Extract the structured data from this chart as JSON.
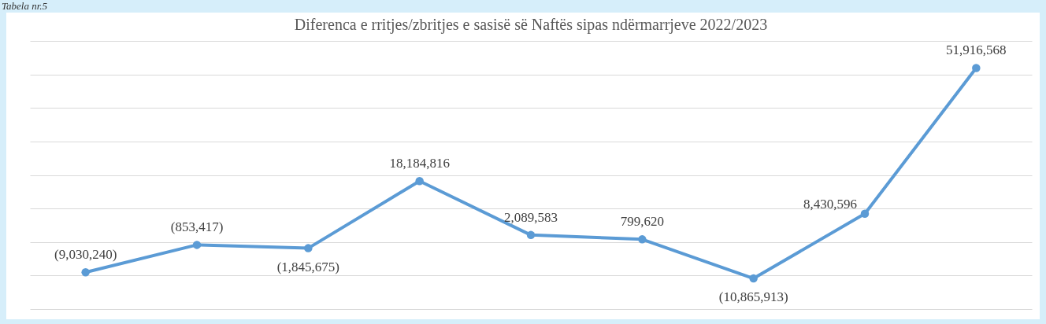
{
  "chart_data": {
    "type": "line",
    "title": "Diferenca e rritjes/zbritjes e sasisë së Naftës sipas ndërmarrjeve  2022/2023",
    "annotations": [
      "Tabela nr.5"
    ],
    "categories": [
      null,
      null,
      null,
      null,
      null,
      null,
      null,
      null,
      null
    ],
    "series": [
      {
        "color": "#5b9bd5",
        "values": [
          -9030240,
          -853417,
          -1845675,
          18184816,
          2089583,
          799620,
          -10865913,
          8430596,
          51916568
        ],
        "value_labels": [
          "(9,030,240)",
          "(853,417)",
          "(1,845,675)",
          "18,184,816",
          "2,089,583",
          "799,620",
          "(10,865,913)",
          "8,430,596",
          "51,916,568"
        ]
      }
    ],
    "ylim": [
      -20000000,
      60000000
    ],
    "yticks": [
      {
        "value": -20000000,
        "label": null
      },
      {
        "value": -10000000,
        "label": null
      },
      {
        "value": 0,
        "label": null
      },
      {
        "value": 10000000,
        "label": null
      },
      {
        "value": 20000000,
        "label": null
      },
      {
        "value": 30000000,
        "label": null
      },
      {
        "value": 40000000,
        "label": null
      },
      {
        "value": 50000000,
        "label": null
      },
      {
        "value": 60000000,
        "label": null
      }
    ],
    "grid": "y",
    "marker": "circle",
    "line_style": "solid"
  }
}
